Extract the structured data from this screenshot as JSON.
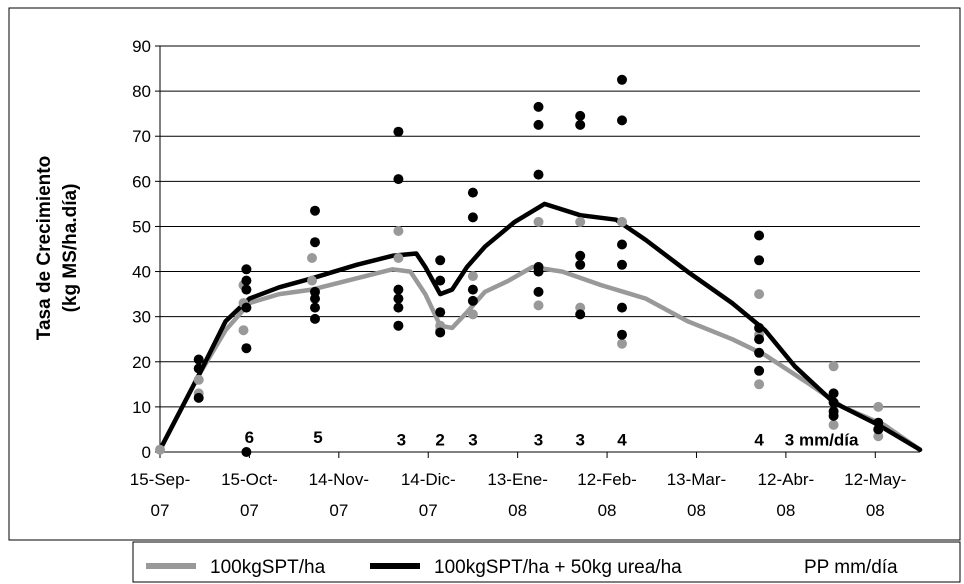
{
  "chart_data": {
    "type": "line",
    "ylabel_line1": "Tasa de Crecimiento",
    "ylabel_line2": "(kg MS/ha.día)",
    "xlabel": "",
    "ylim": [
      0,
      90
    ],
    "yticks": [
      0,
      10,
      20,
      30,
      40,
      50,
      60,
      70,
      80,
      90
    ],
    "x_ticks": [
      {
        "line1": "15-Sep-",
        "line2": "07",
        "date": "2007-09-15"
      },
      {
        "line1": "15-Oct-",
        "line2": "07",
        "date": "2007-10-15"
      },
      {
        "line1": "14-Nov-",
        "line2": "07",
        "date": "2007-11-14"
      },
      {
        "line1": "14-Dic-",
        "line2": "07",
        "date": "2007-12-14"
      },
      {
        "line1": "13-Ene-",
        "line2": "08",
        "date": "2008-01-13"
      },
      {
        "line1": "12-Feb-",
        "line2": "08",
        "date": "2008-02-12"
      },
      {
        "line1": "13-Mar-",
        "line2": "08",
        "date": "2008-03-13"
      },
      {
        "line1": "12-Abr-",
        "line2": "08",
        "date": "2008-04-12"
      },
      {
        "line1": "12-May-",
        "line2": "08",
        "date": "2008-05-12"
      }
    ],
    "series": [
      {
        "name": "100kgSPT/ha",
        "color": "#999999",
        "line": [
          [
            "2007-09-15",
            0.5
          ],
          [
            "2007-09-28",
            17
          ],
          [
            "2007-10-07",
            27
          ],
          [
            "2007-10-15",
            33
          ],
          [
            "2007-10-25",
            35
          ],
          [
            "2007-11-05",
            36
          ],
          [
            "2007-11-20",
            38.5
          ],
          [
            "2007-12-02",
            40.5
          ],
          [
            "2007-12-08",
            40
          ],
          [
            "2007-12-13",
            35
          ],
          [
            "2007-12-18",
            28
          ],
          [
            "2007-12-22",
            27.5
          ],
          [
            "2007-12-27",
            31
          ],
          [
            "2008-01-02",
            35.5
          ],
          [
            "2008-01-10",
            38
          ],
          [
            "2008-01-18",
            41
          ],
          [
            "2008-01-28",
            40
          ],
          [
            "2008-02-10",
            37
          ],
          [
            "2008-02-25",
            34
          ],
          [
            "2008-03-10",
            29
          ],
          [
            "2008-03-25",
            25
          ],
          [
            "2008-04-05",
            21.5
          ],
          [
            "2008-04-20",
            15
          ],
          [
            "2008-05-01",
            10
          ],
          [
            "2008-05-15",
            6
          ],
          [
            "2008-05-27",
            0.5
          ]
        ],
        "points": [
          [
            "2007-09-15",
            0.5
          ],
          [
            "2007-09-28",
            13
          ],
          [
            "2007-09-28",
            16
          ],
          [
            "2007-10-13",
            37
          ],
          [
            "2007-10-13",
            33
          ],
          [
            "2007-10-13",
            27
          ],
          [
            "2007-11-05",
            43
          ],
          [
            "2007-11-05",
            38
          ],
          [
            "2007-12-04",
            49
          ],
          [
            "2007-12-04",
            43
          ],
          [
            "2007-12-04",
            28
          ],
          [
            "2007-12-18",
            28
          ],
          [
            "2007-12-18",
            27
          ],
          [
            "2007-12-29",
            39
          ],
          [
            "2007-12-29",
            30.5
          ],
          [
            "2008-01-20",
            51
          ],
          [
            "2008-01-20",
            41
          ],
          [
            "2008-01-20",
            32.5
          ],
          [
            "2008-02-03",
            51
          ],
          [
            "2008-02-03",
            32
          ],
          [
            "2008-02-17",
            51
          ],
          [
            "2008-02-17",
            24
          ],
          [
            "2008-04-03",
            35
          ],
          [
            "2008-04-03",
            26
          ],
          [
            "2008-04-03",
            15
          ],
          [
            "2008-04-28",
            19
          ],
          [
            "2008-04-28",
            6
          ],
          [
            "2008-05-13",
            10
          ],
          [
            "2008-05-13",
            5
          ],
          [
            "2008-05-13",
            3.5
          ]
        ]
      },
      {
        "name": "100kgSPT/ha + 50kg urea/ha",
        "color": "#000000",
        "line": [
          [
            "2007-09-15",
            0.5
          ],
          [
            "2007-09-28",
            17
          ],
          [
            "2007-10-07",
            29
          ],
          [
            "2007-10-15",
            34
          ],
          [
            "2007-10-25",
            36.5
          ],
          [
            "2007-11-05",
            38.5
          ],
          [
            "2007-11-20",
            41.5
          ],
          [
            "2007-12-02",
            43.5
          ],
          [
            "2007-12-10",
            44
          ],
          [
            "2007-12-13",
            41
          ],
          [
            "2007-12-18",
            35
          ],
          [
            "2007-12-22",
            36
          ],
          [
            "2007-12-27",
            41
          ],
          [
            "2008-01-02",
            45.5
          ],
          [
            "2008-01-12",
            51
          ],
          [
            "2008-01-22",
            55
          ],
          [
            "2008-02-03",
            52.5
          ],
          [
            "2008-02-15",
            51.5
          ],
          [
            "2008-02-25",
            47
          ],
          [
            "2008-03-10",
            40
          ],
          [
            "2008-03-25",
            33
          ],
          [
            "2008-04-05",
            27
          ],
          [
            "2008-04-15",
            19
          ],
          [
            "2008-04-28",
            11
          ],
          [
            "2008-05-13",
            6
          ],
          [
            "2008-05-27",
            0.5
          ]
        ],
        "points": [
          [
            "2007-09-28",
            20.5
          ],
          [
            "2007-09-28",
            18.5
          ],
          [
            "2007-09-28",
            12
          ],
          [
            "2007-10-14",
            40.5
          ],
          [
            "2007-10-14",
            38
          ],
          [
            "2007-10-14",
            36
          ],
          [
            "2007-10-14",
            32
          ],
          [
            "2007-10-14",
            23
          ],
          [
            "2007-10-14",
            0
          ],
          [
            "2007-11-06",
            53.5
          ],
          [
            "2007-11-06",
            46.5
          ],
          [
            "2007-11-06",
            35.5
          ],
          [
            "2007-11-06",
            34
          ],
          [
            "2007-11-06",
            32
          ],
          [
            "2007-11-06",
            29.5
          ],
          [
            "2007-12-04",
            71
          ],
          [
            "2007-12-04",
            60.5
          ],
          [
            "2007-12-04",
            36
          ],
          [
            "2007-12-04",
            34
          ],
          [
            "2007-12-04",
            32
          ],
          [
            "2007-12-04",
            28
          ],
          [
            "2007-12-18",
            42.5
          ],
          [
            "2007-12-18",
            38
          ],
          [
            "2007-12-18",
            31
          ],
          [
            "2007-12-18",
            26.5
          ],
          [
            "2007-12-29",
            57.5
          ],
          [
            "2007-12-29",
            52
          ],
          [
            "2007-12-29",
            36
          ],
          [
            "2007-12-29",
            33.5
          ],
          [
            "2008-01-20",
            76.5
          ],
          [
            "2008-01-20",
            72.5
          ],
          [
            "2008-01-20",
            61.5
          ],
          [
            "2008-01-20",
            41
          ],
          [
            "2008-01-20",
            40
          ],
          [
            "2008-01-20",
            35.5
          ],
          [
            "2008-02-03",
            74.5
          ],
          [
            "2008-02-03",
            72.5
          ],
          [
            "2008-02-03",
            43.5
          ],
          [
            "2008-02-03",
            41.5
          ],
          [
            "2008-02-03",
            30.5
          ],
          [
            "2008-02-17",
            82.5
          ],
          [
            "2008-02-17",
            73.5
          ],
          [
            "2008-02-17",
            46
          ],
          [
            "2008-02-17",
            41.5
          ],
          [
            "2008-02-17",
            32
          ],
          [
            "2008-02-17",
            26
          ],
          [
            "2008-04-03",
            48
          ],
          [
            "2008-04-03",
            42.5
          ],
          [
            "2008-04-03",
            27.5
          ],
          [
            "2008-04-03",
            25
          ],
          [
            "2008-04-03",
            22
          ],
          [
            "2008-04-03",
            18
          ],
          [
            "2008-04-28",
            13
          ],
          [
            "2008-04-28",
            11
          ],
          [
            "2008-04-28",
            9
          ],
          [
            "2008-04-28",
            8
          ],
          [
            "2008-05-13",
            6.5
          ],
          [
            "2008-05-13",
            5
          ]
        ]
      }
    ],
    "pp_labels": [
      {
        "date": "2007-10-15",
        "y": 1.5,
        "text": "6"
      },
      {
        "date": "2007-11-07",
        "y": 1.5,
        "text": "5"
      },
      {
        "date": "2007-12-05",
        "y": 1.0,
        "text": "3"
      },
      {
        "date": "2007-12-18",
        "y": 1.0,
        "text": "2"
      },
      {
        "date": "2007-12-29",
        "y": 1.0,
        "text": "3"
      },
      {
        "date": "2008-01-20",
        "y": 1.0,
        "text": "3"
      },
      {
        "date": "2008-02-03",
        "y": 1.0,
        "text": "3"
      },
      {
        "date": "2008-02-17",
        "y": 1.0,
        "text": "4"
      },
      {
        "date": "2008-04-03",
        "y": 1.0,
        "text": "4"
      },
      {
        "date": "2008-04-24",
        "y": 1.0,
        "text": "3 mm/día"
      }
    ],
    "legend": {
      "position": "bottom",
      "entries": [
        {
          "label": "100kgSPT/ha",
          "color": "#999999"
        },
        {
          "label": "100kgSPT/ha + 50kg urea/ha",
          "color": "#000000"
        },
        {
          "label": "PP mm/día",
          "color": ""
        }
      ]
    },
    "grid": true
  }
}
